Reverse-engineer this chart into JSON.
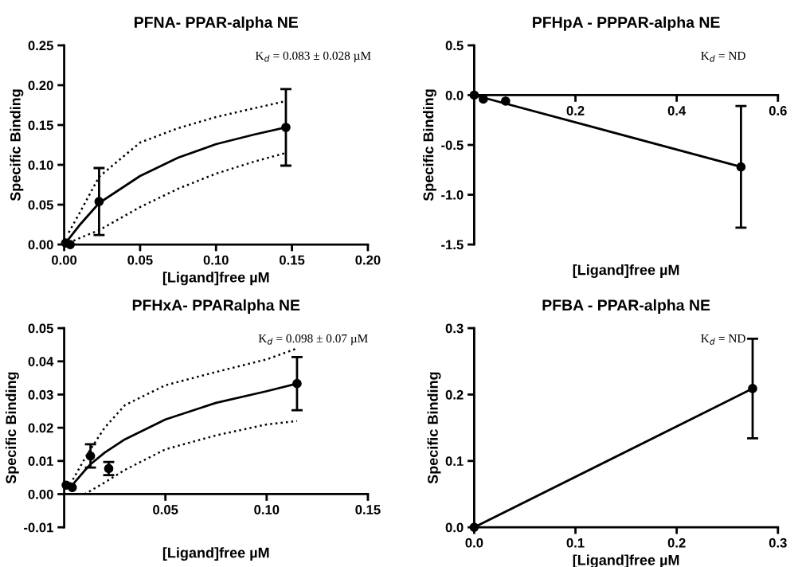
{
  "chart_data": [
    {
      "type": "scatter",
      "title": "PFNA- PPAR-alpha NE",
      "xlabel": "[Ligand]free µM",
      "ylabel": "Specific Binding",
      "annotations": [
        "K$_{d}$ = 0.083 ± 0.028 µM"
      ],
      "xlim": [
        0,
        0.2
      ],
      "xticks": [
        {
          "value": 0,
          "label": "0.00"
        },
        {
          "value": 0.05,
          "label": "0.05"
        },
        {
          "value": 0.1,
          "label": "0.10"
        },
        {
          "value": 0.15,
          "label": "0.15"
        },
        {
          "value": 0.2,
          "label": "0.20"
        }
      ],
      "ylim": [
        0,
        0.25
      ],
      "yticks": [
        {
          "value": 0,
          "label": "0.00"
        },
        {
          "value": 0.05,
          "label": "0.05"
        },
        {
          "value": 0.1,
          "label": "0.10"
        },
        {
          "value": 0.15,
          "label": "0.15"
        },
        {
          "value": 0.2,
          "label": "0.20"
        },
        {
          "value": 0.25,
          "label": "0.25"
        }
      ],
      "grid": false,
      "series": [
        {
          "type": "line",
          "color": "#000000",
          "marker": "none",
          "line_style": "solid",
          "x": [
            0,
            0.003,
            0.01,
            0.023,
            0.05,
            0.075,
            0.1,
            0.125,
            0.146
          ],
          "values": [
            0,
            0.007,
            0.024,
            0.052,
            0.086,
            0.109,
            0.126,
            0.138,
            0.147
          ]
        },
        {
          "type": "line",
          "color": "#000000",
          "marker": "none",
          "line_style": "dotted",
          "x": [
            0.003,
            0.01,
            0.023,
            0.05,
            0.075,
            0.1,
            0.125,
            0.146
          ],
          "values": [
            0.002,
            0.008,
            0.018,
            0.047,
            0.07,
            0.089,
            0.104,
            0.115
          ]
        },
        {
          "type": "line",
          "color": "#000000",
          "marker": "none",
          "line_style": "dotted",
          "x": [
            0.003,
            0.01,
            0.023,
            0.05,
            0.075,
            0.1,
            0.125,
            0.146
          ],
          "values": [
            0.015,
            0.039,
            0.085,
            0.128,
            0.146,
            0.16,
            0.171,
            0.18
          ]
        },
        {
          "color": "#000000",
          "marker": "circle",
          "x": [
            0.001,
            0.004,
            0.023,
            0.146
          ],
          "values": [
            0.002,
            0.0,
            0.054,
            0.147
          ],
          "errors": [
            null,
            null,
            0.042,
            0.048
          ]
        }
      ]
    },
    {
      "type": "scatter",
      "title": "PFHpA - PPPAR-alpha NE",
      "xlabel": "[Ligand]free µM",
      "ylabel": "Specific Binding",
      "annotations": [
        "K$_{d}$ = ND"
      ],
      "xlim": [
        0,
        0.6
      ],
      "xticks": [
        0.2,
        0.4,
        0.6
      ],
      "ylim": [
        -1.5,
        0.5
      ],
      "yticks": [
        -1.5,
        {
          "value": -1.0,
          "label": "-1.0"
        },
        -0.5,
        {
          "value": 0,
          "label": "0.0"
        },
        0.5
      ],
      "grid": false,
      "series": [
        {
          "type": "line",
          "color": "#000000",
          "marker": "none",
          "line_style": "solid",
          "x": [
            0,
            0.527
          ],
          "values": [
            0,
            -0.72
          ]
        },
        {
          "color": "#000000",
          "marker": "circle",
          "x": [
            0.0,
            0.018,
            0.062,
            0.527
          ],
          "values": [
            0.0,
            -0.04,
            -0.06,
            -0.72
          ],
          "errors": [
            null,
            null,
            null,
            0.61
          ]
        }
      ]
    },
    {
      "type": "scatter",
      "title": "PFHxA- PPARalpha NE",
      "xlabel": "[Ligand]free µM",
      "ylabel": "Specific Binding",
      "annotations": [
        "K$_{d}$ = 0.098 ± 0.07 µM"
      ],
      "xlim": [
        0,
        0.15
      ],
      "xticks": [
        {
          "value": 0.05,
          "label": "0.05"
        },
        {
          "value": 0.1,
          "label": "0.10"
        },
        {
          "value": 0.15,
          "label": "0.15"
        }
      ],
      "ylim": [
        -0.01,
        0.05
      ],
      "yticks": [
        {
          "value": -0.01,
          "label": "-0.01"
        },
        {
          "value": 0,
          "label": "0.00"
        },
        {
          "value": 0.01,
          "label": "0.01"
        },
        {
          "value": 0.02,
          "label": "0.02"
        },
        {
          "value": 0.03,
          "label": "0.03"
        },
        {
          "value": 0.04,
          "label": "0.04"
        },
        {
          "value": 0.05,
          "label": "0.05"
        }
      ],
      "grid": false,
      "series": [
        {
          "type": "line",
          "color": "#000000",
          "marker": "none",
          "line_style": "solid",
          "x": [
            0.003,
            0.01,
            0.013,
            0.02,
            0.03,
            0.05,
            0.075,
            0.1,
            0.115
          ],
          "values": [
            0.002,
            0.007,
            0.009,
            0.0125,
            0.0165,
            0.0225,
            0.0275,
            0.031,
            0.0333
          ]
        },
        {
          "type": "line",
          "color": "#000000",
          "marker": "none",
          "line_style": "dotted",
          "x": [
            0.01,
            0.013,
            0.02,
            0.03,
            0.05,
            0.075,
            0.1,
            0.115
          ],
          "values": [
            0.0,
            0.001,
            0.0035,
            0.0073,
            0.0135,
            0.0177,
            0.021,
            0.022
          ]
        },
        {
          "type": "line",
          "color": "#000000",
          "marker": "none",
          "line_style": "dotted",
          "x": [
            0.003,
            0.01,
            0.013,
            0.02,
            0.03,
            0.05,
            0.075,
            0.1,
            0.115
          ],
          "values": [
            0.003,
            0.0105,
            0.0135,
            0.02,
            0.0268,
            0.0328,
            0.0368,
            0.0406,
            0.0439
          ]
        },
        {
          "color": "#000000",
          "marker": "circle",
          "x": [
            0.001,
            0.004,
            0.013,
            0.022,
            0.115
          ],
          "values": [
            0.0027,
            0.002,
            0.0115,
            0.0077,
            0.0333
          ],
          "errors": [
            null,
            null,
            0.0035,
            0.002,
            0.008
          ]
        }
      ]
    },
    {
      "type": "scatter",
      "title": "PFBA - PPAR-alpha NE",
      "xlabel": "[Ligand]free µM",
      "ylabel": "Specific Binding",
      "annotations": [
        "K$_{d}$ = ND"
      ],
      "xlim": [
        0,
        0.3
      ],
      "xticks": [
        {
          "value": 0,
          "label": "0.0"
        },
        0.1,
        0.2,
        0.3
      ],
      "ylim": [
        0,
        0.3
      ],
      "yticks": [
        {
          "value": 0,
          "label": "0.0"
        },
        0.1,
        0.2,
        0.3
      ],
      "grid": false,
      "series": [
        {
          "type": "line",
          "color": "#000000",
          "marker": "none",
          "line_style": "solid",
          "x": [
            0.0,
            0.275
          ],
          "values": [
            0.0,
            0.209
          ]
        },
        {
          "color": "#000000",
          "marker": "circle",
          "x": [
            0.0,
            0.275
          ],
          "values": [
            0.0,
            0.209
          ],
          "errors": [
            null,
            0.075
          ]
        }
      ]
    }
  ]
}
